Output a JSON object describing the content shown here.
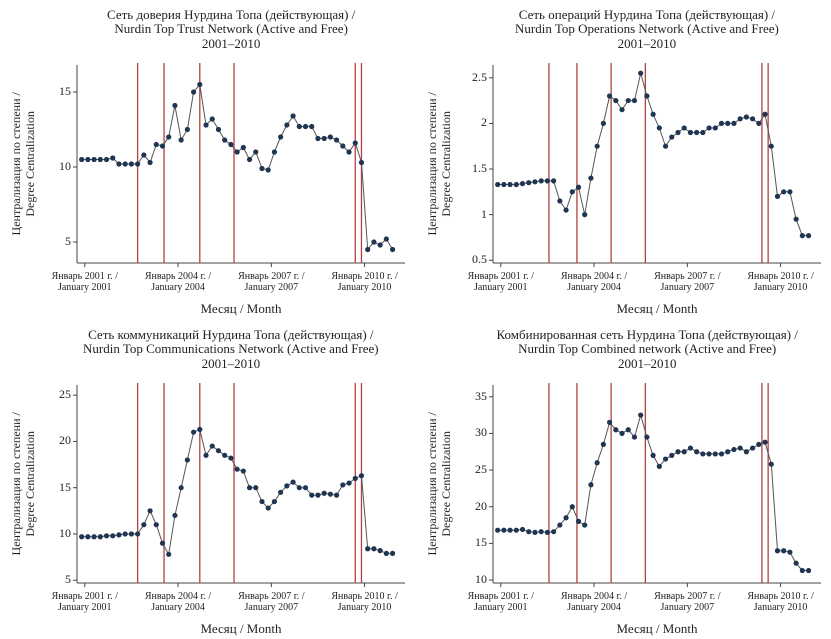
{
  "chart_data": [
    {
      "type": "line",
      "title": "Сеть доверия Нурдина Топа (действующая) /\nNurdin Top Trust Network (Active and Free)\n2001–2010",
      "xlabel": "Месяц / Month",
      "ylabel": "Централизация по степени /\nDegree Centralization",
      "x": [
        2000.9,
        2001.1,
        2001.3,
        2001.5,
        2001.7,
        2001.9,
        2002.1,
        2002.3,
        2002.5,
        2002.7,
        2002.9,
        2003.1,
        2003.3,
        2003.5,
        2003.7,
        2003.9,
        2004.1,
        2004.3,
        2004.5,
        2004.7,
        2004.9,
        2005.1,
        2005.3,
        2005.5,
        2005.7,
        2005.9,
        2006.1,
        2006.3,
        2006.5,
        2006.7,
        2006.9,
        2007.1,
        2007.3,
        2007.5,
        2007.7,
        2007.9,
        2008.1,
        2008.3,
        2008.5,
        2008.7,
        2008.9,
        2009.1,
        2009.3,
        2009.5,
        2009.7,
        2009.9,
        2010.1,
        2010.3,
        2010.5,
        2010.7,
        2010.9
      ],
      "series": [
        {
          "color": "#1f3552",
          "values": [
            10.5,
            10.5,
            10.5,
            10.5,
            10.5,
            10.6,
            10.2,
            10.2,
            10.2,
            10.2,
            10.8,
            10.3,
            11.5,
            11.4,
            12.0,
            14.1,
            11.8,
            12.5,
            15.0,
            15.5,
            12.8,
            13.2,
            12.5,
            11.8,
            11.5,
            11.0,
            11.3,
            10.5,
            11.0,
            9.9,
            9.8,
            11.0,
            12.0,
            12.8,
            13.4,
            12.7,
            12.7,
            12.7,
            11.9,
            11.9,
            12.0,
            11.8,
            11.4,
            11.0,
            11.6,
            10.3,
            4.5,
            5.0,
            4.8,
            5.2,
            4.5
          ]
        }
      ],
      "events": [
        2002.7,
        2003.55,
        2004.7,
        2005.8,
        2009.7,
        2009.9
      ],
      "event_color": "#b5403f",
      "xlim": [
        2000.75,
        2011.3
      ],
      "xticks": [
        {
          "value": 2001,
          "label": "Январь 2001 г. /\nJanuary 2001"
        },
        {
          "value": 2004,
          "label": "Январь 2004 г. /\nJanuary 2004"
        },
        {
          "value": 2007,
          "label": "Январь 2007 г. /\nJanuary 2007"
        },
        {
          "value": 2010,
          "label": "Январь 2010 г. /\nJanuary 2010"
        }
      ],
      "ylim": [
        3.6,
        16.8
      ],
      "yticks": [
        5,
        10,
        15
      ]
    },
    {
      "type": "line",
      "title": "Сеть операций Нурдина Топа (действующая) /\nNurdin Top Operations Network (Active and Free)\n2001–2010",
      "xlabel": "Месяц / Month",
      "ylabel": "Централизация по степени /\nDegree Centralization",
      "x": [
        2000.9,
        2001.1,
        2001.3,
        2001.5,
        2001.7,
        2001.9,
        2002.1,
        2002.3,
        2002.5,
        2002.7,
        2002.9,
        2003.1,
        2003.3,
        2003.5,
        2003.7,
        2003.9,
        2004.1,
        2004.3,
        2004.5,
        2004.7,
        2004.9,
        2005.1,
        2005.3,
        2005.5,
        2005.7,
        2005.9,
        2006.1,
        2006.3,
        2006.5,
        2006.7,
        2006.9,
        2007.1,
        2007.3,
        2007.5,
        2007.7,
        2007.9,
        2008.1,
        2008.3,
        2008.5,
        2008.7,
        2008.9,
        2009.1,
        2009.3,
        2009.5,
        2009.7,
        2009.9,
        2010.1,
        2010.3,
        2010.5,
        2010.7,
        2010.9
      ],
      "series": [
        {
          "color": "#1f3552",
          "values": [
            1.33,
            1.33,
            1.33,
            1.33,
            1.34,
            1.35,
            1.36,
            1.37,
            1.37,
            1.37,
            1.15,
            1.05,
            1.25,
            1.3,
            1.0,
            1.4,
            1.75,
            2.0,
            2.3,
            2.25,
            2.15,
            2.25,
            2.25,
            2.55,
            2.3,
            2.1,
            1.95,
            1.75,
            1.85,
            1.9,
            1.95,
            1.9,
            1.9,
            1.9,
            1.95,
            1.95,
            2.0,
            2.0,
            2.0,
            2.05,
            2.07,
            2.05,
            2.0,
            2.1,
            1.75,
            1.2,
            1.25,
            1.25,
            0.95,
            0.77,
            0.77
          ]
        }
      ],
      "events": [
        2002.55,
        2003.45,
        2004.55,
        2005.65,
        2009.4,
        2009.6
      ],
      "event_color": "#b5403f",
      "xlim": [
        2000.75,
        2011.3
      ],
      "xticks": [
        {
          "value": 2001,
          "label": "Январь 2001 г. /\nJanuary 2001"
        },
        {
          "value": 2004,
          "label": "Январь 2004 г. /\nJanuary 2004"
        },
        {
          "value": 2007,
          "label": "Январь 2007 г. /\nJanuary 2007"
        },
        {
          "value": 2010,
          "label": "Январь 2010 г. /\nJanuary 2010"
        }
      ],
      "ylim": [
        0.47,
        2.64
      ],
      "yticks": [
        0.5,
        1,
        1.5,
        2,
        2.5
      ]
    },
    {
      "type": "line",
      "title": "Сеть коммуникаций Нурдина Топа (действующая) /\nNurdin Top Communications Network (Active and Free)\n2001–2010",
      "xlabel": "Месяц / Month",
      "ylabel": "Централизация по степени /\nDegree Centralization",
      "x": [
        2000.9,
        2001.1,
        2001.3,
        2001.5,
        2001.7,
        2001.9,
        2002.1,
        2002.3,
        2002.5,
        2002.7,
        2002.9,
        2003.1,
        2003.3,
        2003.5,
        2003.7,
        2003.9,
        2004.1,
        2004.3,
        2004.5,
        2004.7,
        2004.9,
        2005.1,
        2005.3,
        2005.5,
        2005.7,
        2005.9,
        2006.1,
        2006.3,
        2006.5,
        2006.7,
        2006.9,
        2007.1,
        2007.3,
        2007.5,
        2007.7,
        2007.9,
        2008.1,
        2008.3,
        2008.5,
        2008.7,
        2008.9,
        2009.1,
        2009.3,
        2009.5,
        2009.7,
        2009.9,
        2010.1,
        2010.3,
        2010.5,
        2010.7,
        2010.9
      ],
      "series": [
        {
          "color": "#1f3552",
          "values": [
            9.7,
            9.7,
            9.7,
            9.7,
            9.8,
            9.8,
            9.9,
            10.0,
            10.0,
            10.0,
            11.0,
            12.5,
            11.0,
            9.0,
            7.8,
            12.0,
            15.0,
            18.0,
            21.0,
            21.3,
            18.5,
            19.5,
            19.0,
            18.5,
            18.2,
            17.0,
            16.8,
            15.0,
            15.0,
            13.5,
            12.8,
            13.5,
            14.5,
            15.2,
            15.6,
            15.0,
            15.0,
            14.2,
            14.2,
            14.4,
            14.3,
            14.2,
            15.3,
            15.5,
            16.0,
            16.3,
            8.4,
            8.4,
            8.2,
            7.9,
            7.9
          ]
        }
      ],
      "events": [
        2002.7,
        2003.55,
        2004.7,
        2005.8,
        2009.7,
        2009.9
      ],
      "event_color": "#b5403f",
      "xlim": [
        2000.75,
        2011.3
      ],
      "xticks": [
        {
          "value": 2001,
          "label": "Январь 2001 г. /\nJanuary 2001"
        },
        {
          "value": 2004,
          "label": "Январь 2004 г. /\nJanuary 2004"
        },
        {
          "value": 2007,
          "label": "Январь 2007 г. /\nJanuary 2007"
        },
        {
          "value": 2010,
          "label": "Январь 2010 г. /\nJanuary 2010"
        }
      ],
      "ylim": [
        4.7,
        26.1
      ],
      "yticks": [
        5,
        10,
        15,
        20,
        25
      ]
    },
    {
      "type": "line",
      "title": "Комбинированная сеть Нурдина Топа (действующая) /\nNurdin Top Combined network (Active and Free)\n2001–2010",
      "xlabel": "Месяц / Month",
      "ylabel": "Централизация по степени /\nDegree Centralization",
      "x": [
        2000.9,
        2001.1,
        2001.3,
        2001.5,
        2001.7,
        2001.9,
        2002.1,
        2002.3,
        2002.5,
        2002.7,
        2002.9,
        2003.1,
        2003.3,
        2003.5,
        2003.7,
        2003.9,
        2004.1,
        2004.3,
        2004.5,
        2004.7,
        2004.9,
        2005.1,
        2005.3,
        2005.5,
        2005.7,
        2005.9,
        2006.1,
        2006.3,
        2006.5,
        2006.7,
        2006.9,
        2007.1,
        2007.3,
        2007.5,
        2007.7,
        2007.9,
        2008.1,
        2008.3,
        2008.5,
        2008.7,
        2008.9,
        2009.1,
        2009.3,
        2009.5,
        2009.7,
        2009.9,
        2010.1,
        2010.3,
        2010.5,
        2010.7,
        2010.9
      ],
      "series": [
        {
          "color": "#1f3552",
          "values": [
            16.8,
            16.8,
            16.8,
            16.8,
            16.9,
            16.6,
            16.5,
            16.6,
            16.5,
            16.6,
            17.5,
            18.5,
            20.0,
            18.0,
            17.5,
            23.0,
            26.0,
            28.5,
            31.5,
            30.5,
            30.0,
            30.5,
            29.5,
            32.5,
            29.5,
            27.0,
            25.5,
            26.5,
            27.0,
            27.5,
            27.5,
            28.0,
            27.5,
            27.2,
            27.2,
            27.2,
            27.2,
            27.5,
            27.8,
            28.0,
            27.5,
            28.0,
            28.5,
            28.8,
            25.8,
            14.0,
            14.0,
            13.8,
            12.3,
            11.3,
            11.3
          ]
        }
      ],
      "events": [
        2002.55,
        2003.45,
        2004.55,
        2005.65,
        2009.4,
        2009.6
      ],
      "event_color": "#b5403f",
      "xlim": [
        2000.75,
        2011.3
      ],
      "xticks": [
        {
          "value": 2001,
          "label": "Январь 2001 г. /\nJanuary 2001"
        },
        {
          "value": 2004,
          "label": "Январь 2004 г. /\nJanuary 2004"
        },
        {
          "value": 2007,
          "label": "Январь 2007 г. /\nJanuary 2007"
        },
        {
          "value": 2010,
          "label": "Январь 2010 г. /\nJanuary 2010"
        }
      ],
      "ylim": [
        9.6,
        36.6
      ],
      "yticks": [
        10,
        15,
        20,
        25,
        30,
        35
      ]
    }
  ]
}
